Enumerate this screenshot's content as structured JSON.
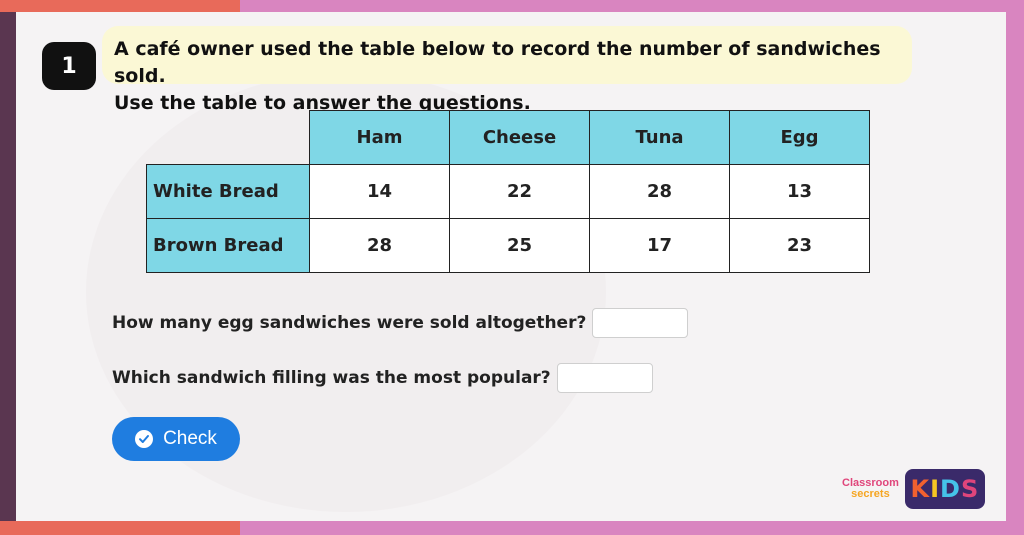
{
  "question": {
    "number": "1",
    "text_line1": "A café owner used the table below to record the number of sandwiches sold.",
    "text_line2": "Use the table to answer the questions."
  },
  "table": {
    "columns": [
      "Ham",
      "Cheese",
      "Tuna",
      "Egg"
    ],
    "rows": [
      {
        "label": "White Bread",
        "values": [
          "14",
          "22",
          "28",
          "13"
        ]
      },
      {
        "label": "Brown Bread",
        "values": [
          "28",
          "25",
          "17",
          "23"
        ]
      }
    ]
  },
  "prompts": [
    {
      "text": "How many egg sandwiches were sold altogether?",
      "answer": ""
    },
    {
      "text": "Which sandwich filling was the most popular?",
      "answer": ""
    }
  ],
  "check_button": {
    "label": "Check"
  },
  "logo": {
    "line1": "Classroom",
    "line2": "secrets",
    "kids": "KIDS"
  },
  "colors": {
    "header_cell": "#7fd7e6",
    "question_bg": "#fbf8d5",
    "button": "#1f7de0",
    "frame_pink": "#d985c0",
    "frame_orange": "#e86a5a"
  }
}
